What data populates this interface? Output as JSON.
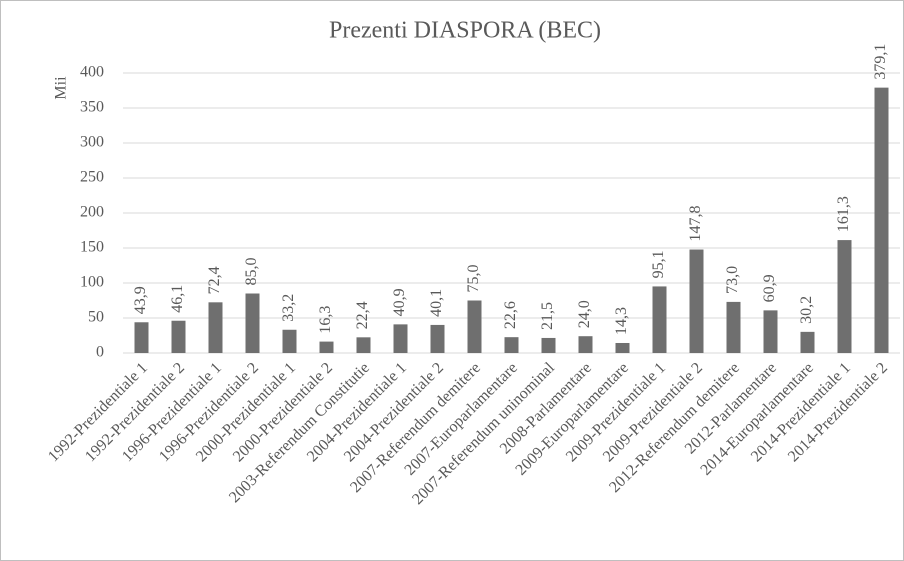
{
  "chart_data": {
    "type": "bar",
    "title": "Prezenti DIASPORA (BEC)",
    "y_label": "Mii",
    "categories": [
      "1992-Prezidentiale 1",
      "1992-Prezidentiale 2",
      "1996-Prezidentiale 1",
      "1996-Prezidentiale 2",
      "2000-Prezidentiale 1",
      "2000-Prezidentiale 2",
      "2003-Referendum Constitutie",
      "2004-Prezidentiale 1",
      "2004-Prezidentiale 2",
      "2007-Referendum demitere",
      "2007-Europarlamentare",
      "2007-Referendum uninominal",
      "2008-Parlamentare",
      "2009-Europarlamentare",
      "2009-Prezidentiale 1",
      "2009-Prezidentiale 2",
      "2012-Referendum demitere",
      "2012-Parlamentare",
      "2014-Europarlamentare",
      "2014-Prezidentiale 1",
      "2014-Prezidentiale 2"
    ],
    "values": [
      43.9,
      46.1,
      72.4,
      85.0,
      33.2,
      16.3,
      22.4,
      40.9,
      40.1,
      75.0,
      22.6,
      21.5,
      24.0,
      14.3,
      95.1,
      147.8,
      73.0,
      60.9,
      30.2,
      161.3,
      379.1
    ],
    "value_labels": [
      "43,9",
      "46,1",
      "72,4",
      "85,0",
      "33,2",
      "16,3",
      "22,4",
      "40,9",
      "40,1",
      "75,0",
      "22,6",
      "21,5",
      "24,0",
      "14,3",
      "95,1",
      "147,8",
      "73,0",
      "60,9",
      "30,2",
      "161,3",
      "379,1"
    ],
    "color": "#6f6f6f",
    "ylim": [
      0,
      400
    ],
    "yticks": [
      0,
      50,
      100,
      150,
      200,
      250,
      300,
      350,
      400
    ],
    "grid": true
  }
}
